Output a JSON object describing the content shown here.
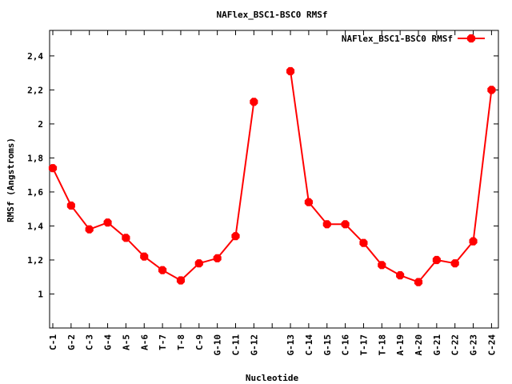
{
  "chart_data": {
    "type": "line",
    "title": "NAFlex_BSC1-BSC0 RMSf",
    "xlabel": "Nucleotide",
    "ylabel": "RMSf (Angstroms)",
    "ylim": [
      0.8,
      2.55
    ],
    "yticks": [
      "1",
      "1,2",
      "1,4",
      "1,6",
      "1,8",
      "2",
      "2,2",
      "2,4"
    ],
    "ytick_values": [
      1.0,
      1.2,
      1.4,
      1.6,
      1.8,
      2.0,
      2.2,
      2.4
    ],
    "grid": false,
    "legend_position": "top-right",
    "categories": [
      "C-1",
      "G-2",
      "C-3",
      "G-4",
      "A-5",
      "A-6",
      "T-7",
      "T-8",
      "C-9",
      "G-10",
      "C-11",
      "G-12",
      "",
      "G-13",
      "C-14",
      "G-15",
      "C-16",
      "T-17",
      "T-18",
      "A-19",
      "A-20",
      "G-21",
      "C-22",
      "G-23",
      "C-24"
    ],
    "series": [
      {
        "name": "NAFlex_BSC1-BSC0 RMSf",
        "color": "#ff0000",
        "segments": [
          [
            1.74,
            1.52,
            1.38,
            1.42,
            1.33,
            1.22,
            1.14,
            1.08,
            1.18,
            1.21,
            1.34,
            2.13
          ],
          [
            2.31,
            1.54,
            1.41,
            1.41,
            1.3,
            1.17,
            1.11,
            1.07,
            1.2,
            1.18,
            1.31,
            2.2
          ]
        ]
      }
    ]
  }
}
